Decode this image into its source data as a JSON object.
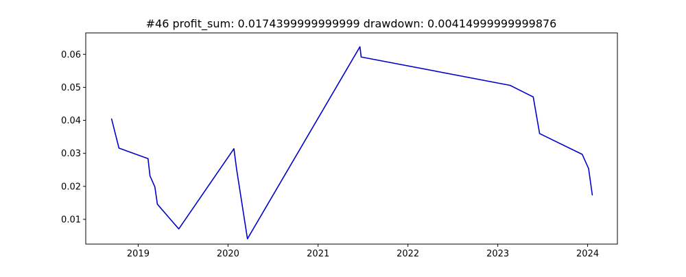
{
  "chart_data": {
    "type": "line",
    "title": "#46   profit_sum: 0.0174399999999999 drawdown: 0.00414999999999876",
    "xlabel": "",
    "ylabel": "",
    "xlim": [
      "2018-06-02",
      "2024-05-01"
    ],
    "ylim": [
      0.0025,
      0.0665
    ],
    "x_ticks": [
      {
        "value": "2019-01-01",
        "label": "2019"
      },
      {
        "value": "2020-01-01",
        "label": "2020"
      },
      {
        "value": "2021-01-01",
        "label": "2021"
      },
      {
        "value": "2022-01-01",
        "label": "2022"
      },
      {
        "value": "2023-01-01",
        "label": "2023"
      },
      {
        "value": "2024-01-01",
        "label": "2024"
      }
    ],
    "y_ticks": [
      {
        "value": 0.01,
        "label": "0.01"
      },
      {
        "value": 0.02,
        "label": "0.02"
      },
      {
        "value": 0.03,
        "label": "0.03"
      },
      {
        "value": 0.04,
        "label": "0.04"
      },
      {
        "value": 0.05,
        "label": "0.05"
      },
      {
        "value": 0.06,
        "label": "0.06"
      }
    ],
    "grid": false,
    "legend": "none",
    "series": [
      {
        "color": "#0000cc",
        "points": [
          {
            "x": "2018-09-15",
            "y": 0.0404
          },
          {
            "x": "2018-10-15",
            "y": 0.0316
          },
          {
            "x": "2019-02-10",
            "y": 0.0284
          },
          {
            "x": "2019-02-18",
            "y": 0.0232
          },
          {
            "x": "2019-03-10",
            "y": 0.0198
          },
          {
            "x": "2019-03-20",
            "y": 0.0146
          },
          {
            "x": "2019-06-15",
            "y": 0.0071
          },
          {
            "x": "2020-01-25",
            "y": 0.0314
          },
          {
            "x": "2020-02-05",
            "y": 0.0252
          },
          {
            "x": "2020-03-20",
            "y": 0.0041
          },
          {
            "x": "2021-06-20",
            "y": 0.0623
          },
          {
            "x": "2021-06-25",
            "y": 0.0592
          },
          {
            "x": "2023-02-20",
            "y": 0.0506
          },
          {
            "x": "2023-05-25",
            "y": 0.0471
          },
          {
            "x": "2023-06-20",
            "y": 0.036
          },
          {
            "x": "2023-12-10",
            "y": 0.0297
          },
          {
            "x": "2024-01-05",
            "y": 0.0254
          },
          {
            "x": "2024-01-20",
            "y": 0.0174
          }
        ]
      }
    ]
  }
}
